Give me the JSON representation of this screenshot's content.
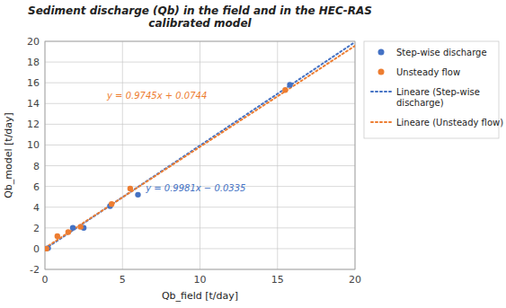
{
  "chart_data": {
    "type": "scatter",
    "title": "Sediment discharge (Qb) in the field and in the HEC-RAS\ncalibrated model",
    "x_label": "Qb_field [t/day]",
    "y_label": "Qb_model [t/day]",
    "xlim": [
      0,
      20
    ],
    "ylim": [
      -2,
      20
    ],
    "xticks": [
      0,
      5,
      10,
      15,
      20
    ],
    "yticks": [
      -2,
      0,
      2,
      4,
      6,
      8,
      10,
      12,
      14,
      16,
      18,
      20
    ],
    "grid": true,
    "legend": "right",
    "series": [
      {
        "name": "Step-wise discharge",
        "type": "scatter",
        "marker": "circle",
        "color": "#4472C4",
        "x": [
          0.2,
          1.8,
          2.5,
          4.2,
          6.0,
          15.8
        ],
        "values": [
          0.05,
          2.0,
          2.0,
          4.1,
          5.2,
          15.8
        ]
      },
      {
        "name": "Unsteady flow",
        "type": "scatter",
        "marker": "circle",
        "color": "#ED7D31",
        "x": [
          0.1,
          0.8,
          1.5,
          2.3,
          4.3,
          5.5,
          15.5
        ],
        "values": [
          0.0,
          1.2,
          1.6,
          2.1,
          4.3,
          5.8,
          15.3
        ]
      },
      {
        "name": "Lineare (Step-wise\ndischarge)",
        "type": "line",
        "line_style": "dotted",
        "color": "#4472C4",
        "x": [
          0,
          20
        ],
        "values": [
          -0.0335,
          19.9285
        ]
      },
      {
        "name": "Lineare (Unsteady flow)",
        "type": "line",
        "line_style": "dotted",
        "color": "#ED7D31",
        "x": [
          0,
          20
        ],
        "values": [
          0.0744,
          19.5644
        ]
      }
    ],
    "annotations": [
      {
        "text": "y = 0.9745x + 0.0744",
        "x": 4.0,
        "y": 14.5,
        "color": "#ED7D31"
      },
      {
        "text": "y = 0.9981x − 0.0335",
        "x": 6.5,
        "y": 5.5,
        "color": "#4472C4"
      }
    ]
  }
}
